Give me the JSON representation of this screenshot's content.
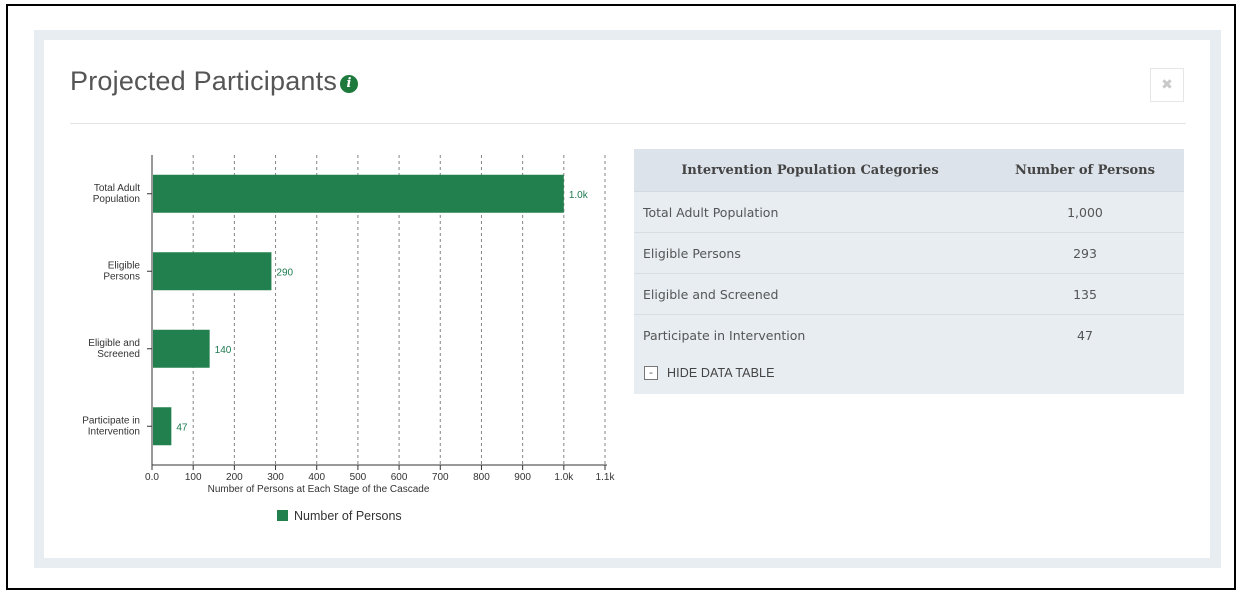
{
  "panel": {
    "title": "Projected Participants",
    "info_icon": "info-circle-icon",
    "close_icon": "close-icon",
    "close_glyph": "✖"
  },
  "colors": {
    "bar": "#22804f",
    "accent": "#1e7a3c",
    "panel_bg": "#e8edf2"
  },
  "chart_data": {
    "type": "bar",
    "orientation": "horizontal",
    "categories": [
      [
        "Total Adult",
        "Population"
      ],
      [
        "Eligible",
        "Persons"
      ],
      [
        "Eligible and",
        "Screened"
      ],
      [
        "Participate in",
        "Intervention"
      ]
    ],
    "series": [
      {
        "name": "Number of Persons",
        "values": [
          1000,
          290,
          140,
          47
        ],
        "data_labels": [
          "1.0k",
          "290",
          "140",
          "47"
        ]
      }
    ],
    "xlabel": "Number of Persons at Each Stage of the Cascade",
    "xlim": [
      0,
      1100
    ],
    "xticks": [
      0,
      100,
      200,
      300,
      400,
      500,
      600,
      700,
      800,
      900,
      1000,
      1100
    ],
    "xtick_labels": [
      "0.0",
      "100",
      "200",
      "300",
      "400",
      "500",
      "600",
      "700",
      "800",
      "900",
      "1.0k",
      "1.1k"
    ],
    "grid": "vertical dashed",
    "legend": "bottom"
  },
  "table": {
    "headers": [
      "Intervention Population Categories",
      "Number of Persons"
    ],
    "rows": [
      {
        "category": "Total Adult Population",
        "value": "1,000"
      },
      {
        "category": "Eligible Persons",
        "value": "293"
      },
      {
        "category": "Eligible and Screened",
        "value": "135"
      },
      {
        "category": "Participate in Intervention",
        "value": "47"
      }
    ],
    "toggle_label": "HIDE DATA TABLE",
    "toggle_glyph": "-"
  }
}
